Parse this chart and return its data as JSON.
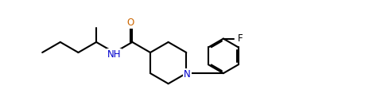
{
  "bond_color": "#000000",
  "label_color_N": "#0000cc",
  "label_color_O": "#cc6600",
  "label_color_F": "#000000",
  "bg_color": "#ffffff",
  "line_width": 1.5,
  "font_size_atom": 8.5,
  "fig_width": 4.59,
  "fig_height": 1.32,
  "dpi": 100,
  "xlim": [
    -0.3,
    9.0
  ],
  "ylim": [
    -0.2,
    2.8
  ]
}
